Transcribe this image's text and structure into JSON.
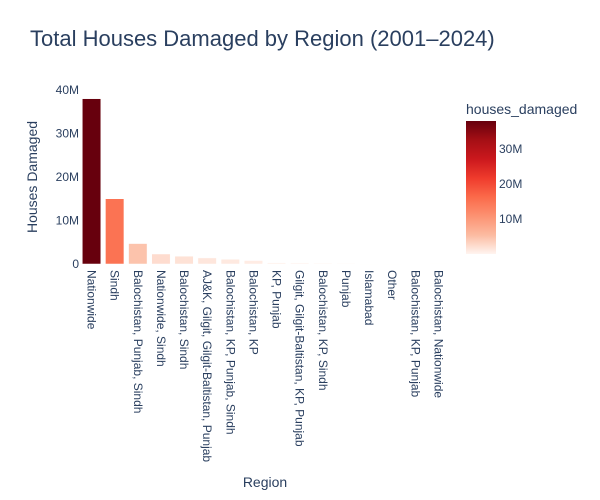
{
  "chart_data": {
    "type": "bar",
    "title": "Total Houses Damaged by Region (2001–2024)",
    "xlabel": "Region",
    "ylabel": "Houses Damaged",
    "categories": [
      "Nationwide",
      "Sindh",
      "Balochistan, Punjab, Sindh",
      "Nationwide, Sindh",
      "Balochistan, Sindh",
      "AJ&K, Gilgit, Gilgit-Baltistan, Punjab",
      "Balochistan, KP, Punjab, Sindh",
      "Balochistan, KP",
      "KP, Punjab",
      "Gilgit, Gilgit-Baltistan, KP, Punjab",
      "Balochistan, KP, Sindh",
      "Punjab",
      "Islamabad",
      "Other",
      "Balochistan, KP, Punjab",
      "Balochistan, Nationwide"
    ],
    "values": [
      38000000,
      15000000,
      4700000,
      2300000,
      1800000,
      1400000,
      1100000,
      800000,
      300000,
      250000,
      200000,
      150000,
      100000,
      80000,
      50000,
      30000
    ],
    "ylim": [
      0,
      40000000
    ],
    "y_ticks": [
      {
        "value": 0,
        "label": "0"
      },
      {
        "value": 10000000,
        "label": "10M"
      },
      {
        "value": 20000000,
        "label": "20M"
      },
      {
        "value": 30000000,
        "label": "30M"
      },
      {
        "value": 40000000,
        "label": "40M"
      }
    ],
    "grid": false,
    "colorbar": {
      "title": "houses_damaged",
      "range": [
        0,
        38000000
      ],
      "ticks": [
        {
          "value": 10000000,
          "label": "10M"
        },
        {
          "value": 20000000,
          "label": "20M"
        },
        {
          "value": 30000000,
          "label": "30M"
        }
      ],
      "colorscale": [
        "#fff5f0",
        "#fcbba1",
        "#fc9272",
        "#fb6a4a",
        "#ef3b2c",
        "#cb181d",
        "#a50f15",
        "#67000d"
      ],
      "placement": "right"
    }
  }
}
